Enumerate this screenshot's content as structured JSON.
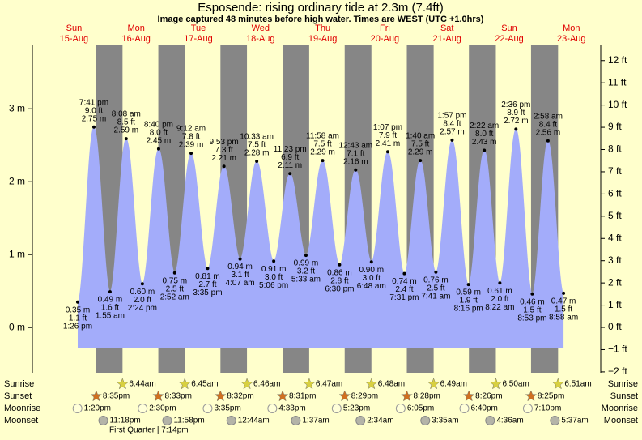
{
  "chart_data": {
    "type": "tide",
    "title": "Esposende: rising  ordinary tide at 2.3m (7.4ft)",
    "subtitle": "Image captured 48 minutes before high water. Times are WEST (UTC +1.0hrs)",
    "ylim": [
      -0.62,
      3.88
    ],
    "yticks": [
      {
        "value": 0,
        "label": "0 m"
      },
      {
        "value": 1,
        "label": "1 m"
      },
      {
        "value": 2,
        "label": "2 m"
      },
      {
        "value": 3,
        "label": "3 m"
      }
    ],
    "y2lim": [
      -2.04,
      12.72
    ],
    "y2ticks": [
      {
        "value": -2,
        "label": "−2 ft"
      },
      {
        "value": -1,
        "label": "−1 ft"
      },
      {
        "value": 0,
        "label": "0 ft"
      },
      {
        "value": 1,
        "label": "1 ft"
      },
      {
        "value": 2,
        "label": "2 ft"
      },
      {
        "value": 3,
        "label": "3 ft"
      },
      {
        "value": 4,
        "label": "4 ft"
      },
      {
        "value": 5,
        "label": "5 ft"
      },
      {
        "value": 6,
        "label": "6 ft"
      },
      {
        "value": 7,
        "label": "7 ft"
      },
      {
        "value": 8,
        "label": "8 ft"
      },
      {
        "value": 9,
        "label": "9 ft"
      },
      {
        "value": 10,
        "label": "10 ft"
      },
      {
        "value": 11,
        "label": "11 ft"
      },
      {
        "value": 12,
        "label": "12 ft"
      }
    ],
    "fill_color": "#a3acfa",
    "night_color": "#868686",
    "day_color": "#ffffcc",
    "row_labels": {
      "sunrise": "Sunrise",
      "sunset": "Sunset",
      "moonrise": "Moonrise",
      "moonset": "Moonset"
    },
    "moon_phase": "First Quarter | 7:14pm",
    "days": [
      {
        "weekday": "Sun",
        "date": "15-Aug",
        "sunset": "8:35pm",
        "moonrise": "1:20pm",
        "moonset": "11:18pm",
        "tides": [
          {
            "time": "1:26 pm",
            "height": 0.35,
            "height_label": "0.35 m",
            "feet_label": "1.1 ft"
          },
          {
            "time": "7:41 pm",
            "height": 2.75,
            "height_label": "2.75 m",
            "feet_label": "9.0 ft"
          }
        ]
      },
      {
        "weekday": "Mon",
        "date": "16-Aug",
        "sunrise": "6:44am",
        "sunset": "8:33pm",
        "moonrise": "2:30pm",
        "moonset": "11:58pm",
        "tides": [
          {
            "time": "1:55 am",
            "height": 0.49,
            "height_label": "0.49 m",
            "feet_label": "1.6 ft"
          },
          {
            "time": "8:08 am",
            "height": 2.59,
            "height_label": "2.59 m",
            "feet_label": "8.5 ft"
          },
          {
            "time": "2:24 pm",
            "height": 0.6,
            "height_label": "0.60 m",
            "feet_label": "2.0 ft"
          },
          {
            "time": "8:40 pm",
            "height": 2.45,
            "height_label": "2.45 m",
            "feet_label": "8.0 ft"
          }
        ]
      },
      {
        "weekday": "Tue",
        "date": "17-Aug",
        "sunrise": "6:45am",
        "sunset": "8:32pm",
        "moonrise": "3:35pm",
        "tides": [
          {
            "time": "2:52 am",
            "height": 0.75,
            "height_label": "0.75 m",
            "feet_label": "2.5 ft"
          },
          {
            "time": "9:12 am",
            "height": 2.39,
            "height_label": "2.39 m",
            "feet_label": "7.8 ft"
          },
          {
            "time": "3:35 pm",
            "height": 0.81,
            "height_label": "0.81 m",
            "feet_label": "2.7 ft"
          },
          {
            "time": "9:53 pm",
            "height": 2.21,
            "height_label": "2.21 m",
            "feet_label": "7.3 ft"
          }
        ]
      },
      {
        "weekday": "Wed",
        "date": "18-Aug",
        "sunrise": "6:46am",
        "sunset": "8:31pm",
        "moonrise": "4:33pm",
        "moonset": "12:44am",
        "tides": [
          {
            "time": "4:07 am",
            "height": 0.94,
            "height_label": "0.94 m",
            "feet_label": "3.1 ft"
          },
          {
            "time": "10:33 am",
            "height": 2.28,
            "height_label": "2.28 m",
            "feet_label": "7.5 ft"
          },
          {
            "time": "5:06 pm",
            "height": 0.91,
            "height_label": "0.91 m",
            "feet_label": "3.0 ft"
          },
          {
            "time": "11:23 pm",
            "height": 2.11,
            "height_label": "2.11 m",
            "feet_label": "6.9 ft"
          }
        ]
      },
      {
        "weekday": "Thu",
        "date": "19-Aug",
        "sunrise": "6:47am",
        "sunset": "8:29pm",
        "moonrise": "5:23pm",
        "moonset": "1:37am",
        "tides": [
          {
            "time": "5:33 am",
            "height": 0.99,
            "height_label": "0.99 m",
            "feet_label": "3.2 ft"
          },
          {
            "time": "11:58 am",
            "height": 2.29,
            "height_label": "2.29 m",
            "feet_label": "7.5 ft"
          },
          {
            "time": "6:30 pm",
            "height": 0.86,
            "height_label": "0.86 m",
            "feet_label": "2.8 ft"
          }
        ]
      },
      {
        "weekday": "Fri",
        "date": "20-Aug",
        "sunrise": "6:48am",
        "sunset": "8:28pm",
        "moonrise": "6:05pm",
        "moonset": "2:34am",
        "tides": [
          {
            "time": "12:43 am",
            "height": 2.16,
            "height_label": "2.16 m",
            "feet_label": "7.1 ft"
          },
          {
            "time": "6:48 am",
            "height": 0.9,
            "height_label": "0.90 m",
            "feet_label": "3.0 ft"
          },
          {
            "time": "1:07 pm",
            "height": 2.41,
            "height_label": "2.41 m",
            "feet_label": "7.9 ft"
          },
          {
            "time": "7:31 pm",
            "height": 0.74,
            "height_label": "0.74 m",
            "feet_label": "2.4 ft"
          }
        ]
      },
      {
        "weekday": "Sat",
        "date": "21-Aug",
        "sunrise": "6:49am",
        "sunset": "8:26pm",
        "moonrise": "6:40pm",
        "moonset": "3:35am",
        "tides": [
          {
            "time": "1:40 am",
            "height": 2.29,
            "height_label": "2.29 m",
            "feet_label": "7.5 ft"
          },
          {
            "time": "7:41 am",
            "height": 0.76,
            "height_label": "0.76 m",
            "feet_label": "2.5 ft"
          },
          {
            "time": "1:57 pm",
            "height": 2.57,
            "height_label": "2.57 m",
            "feet_label": "8.4 ft"
          },
          {
            "time": "8:16 pm",
            "height": 0.59,
            "height_label": "0.59 m",
            "feet_label": "1.9 ft"
          }
        ]
      },
      {
        "weekday": "Sun",
        "date": "22-Aug",
        "sunrise": "6:50am",
        "sunset": "8:25pm",
        "moonrise": "7:10pm",
        "moonset": "4:36am",
        "tides": [
          {
            "time": "2:22 am",
            "height": 2.43,
            "height_label": "2.43 m",
            "feet_label": "8.0 ft"
          },
          {
            "time": "8:22 am",
            "height": 0.61,
            "height_label": "0.61 m",
            "feet_label": "2.0 ft"
          },
          {
            "time": "2:36 pm",
            "height": 2.72,
            "height_label": "2.72 m",
            "feet_label": "8.9 ft"
          },
          {
            "time": "8:53 pm",
            "height": 0.46,
            "height_label": "0.46 m",
            "feet_label": "1.5 ft"
          }
        ]
      },
      {
        "weekday": "Mon",
        "date": "23-Aug",
        "sunrise": "6:51am",
        "moonset": "5:37am",
        "tides": [
          {
            "time": "2:58 am",
            "height": 2.56,
            "height_label": "2.56 m",
            "feet_label": "8.4 ft"
          },
          {
            "time": "8:58 am",
            "height": 0.47,
            "height_label": "0.47 m",
            "feet_label": "1.5 ft"
          }
        ]
      }
    ]
  }
}
